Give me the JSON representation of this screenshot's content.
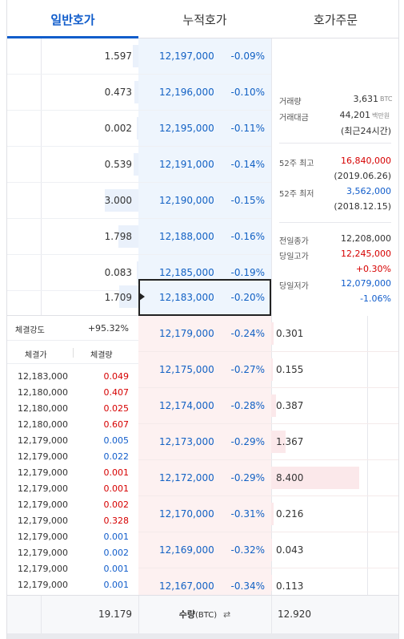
{
  "tabs": [
    "일반호가",
    "누적호가",
    "호가주문"
  ],
  "colors": {
    "accent": "#115dcb",
    "up": "#d60000",
    "down": "#115dcb"
  },
  "asks": [
    {
      "qty": "1.597",
      "price": "12,197,000",
      "rate": "-0.09%",
      "fill": 0.06
    },
    {
      "qty": "0.473",
      "price": "12,196,000",
      "rate": "-0.10%",
      "fill": 0.04
    },
    {
      "qty": "0.002",
      "price": "12,195,000",
      "rate": "-0.11%",
      "fill": 0.02
    },
    {
      "qty": "0.539",
      "price": "12,191,000",
      "rate": "-0.14%",
      "fill": 0.05
    },
    {
      "qty": "3.000",
      "price": "12,190,000",
      "rate": "-0.15%",
      "fill": 0.35
    },
    {
      "qty": "1.798",
      "price": "12,188,000",
      "rate": "-0.16%",
      "fill": 0.21
    },
    {
      "qty": "0.083",
      "price": "12,185,000",
      "rate": "-0.19%",
      "fill": 0.02
    },
    {
      "qty": "1.709",
      "price": "12,183,000",
      "rate": "-0.20%",
      "fill": 0.2
    }
  ],
  "bids": [
    {
      "qty": "0.301",
      "price": "12,179,000",
      "rate": "-0.24%",
      "fill": 0.03
    },
    {
      "qty": "0.155",
      "price": "12,175,000",
      "rate": "-0.27%",
      "fill": 0.02
    },
    {
      "qty": "0.387",
      "price": "12,174,000",
      "rate": "-0.28%",
      "fill": 0.05
    },
    {
      "qty": "1.367",
      "price": "12,173,000",
      "rate": "-0.29%",
      "fill": 0.16
    },
    {
      "qty": "8.400",
      "price": "12,172,000",
      "rate": "-0.29%",
      "fill": 1.0
    },
    {
      "qty": "0.216",
      "price": "12,170,000",
      "rate": "-0.31%",
      "fill": 0.03
    },
    {
      "qty": "0.043",
      "price": "12,169,000",
      "rate": "-0.32%",
      "fill": 0.01
    },
    {
      "qty": "0.113",
      "price": "12,167,000",
      "rate": "-0.34%",
      "fill": 0.01
    }
  ],
  "info": {
    "volume_label": "거래량",
    "volume_value": "3,631",
    "volume_unit": "BTC",
    "amount_label": "거래대금",
    "amount_value": "44,201",
    "amount_unit": "백만원",
    "amount_note": "(최근24시간)",
    "high52_label": "52주 최고",
    "high52_value": "16,840,000",
    "high52_date": "(2019.06.26)",
    "low52_label": "52주 최저",
    "low52_value": "3,562,000",
    "low52_date": "(2018.12.15)",
    "prev_close_label": "전일종가",
    "prev_close_value": "12,208,000",
    "day_high_label": "당일고가",
    "day_high_value": "12,245,000",
    "day_high_rate": "+0.30%",
    "day_low_label": "당일저가",
    "day_low_value": "12,079,000",
    "day_low_rate": "-1.06%"
  },
  "trades": {
    "strength_label": "체결강도",
    "strength_value": "+95.32%",
    "price_header": "체결가",
    "volume_header": "체결량",
    "rows": [
      {
        "price": "12,183,000",
        "vol": "0.049",
        "side": "buy"
      },
      {
        "price": "12,180,000",
        "vol": "0.407",
        "side": "buy"
      },
      {
        "price": "12,180,000",
        "vol": "0.025",
        "side": "buy"
      },
      {
        "price": "12,180,000",
        "vol": "0.607",
        "side": "buy"
      },
      {
        "price": "12,179,000",
        "vol": "0.005",
        "side": "sell"
      },
      {
        "price": "12,179,000",
        "vol": "0.022",
        "side": "sell"
      },
      {
        "price": "12,179,000",
        "vol": "0.001",
        "side": "buy"
      },
      {
        "price": "12,179,000",
        "vol": "0.001",
        "side": "buy"
      },
      {
        "price": "12,179,000",
        "vol": "0.002",
        "side": "buy"
      },
      {
        "price": "12,179,000",
        "vol": "0.328",
        "side": "buy"
      },
      {
        "price": "12,179,000",
        "vol": "0.001",
        "side": "sell"
      },
      {
        "price": "12,179,000",
        "vol": "0.002",
        "side": "sell"
      },
      {
        "price": "12,179,000",
        "vol": "0.001",
        "side": "sell"
      },
      {
        "price": "12,179,000",
        "vol": "0.001",
        "side": "sell"
      }
    ]
  },
  "footer": {
    "ask_total": "19.179",
    "label": "수량",
    "unit": "(BTC)",
    "toggle_icon": "swap-icon",
    "bid_total": "12.920"
  }
}
